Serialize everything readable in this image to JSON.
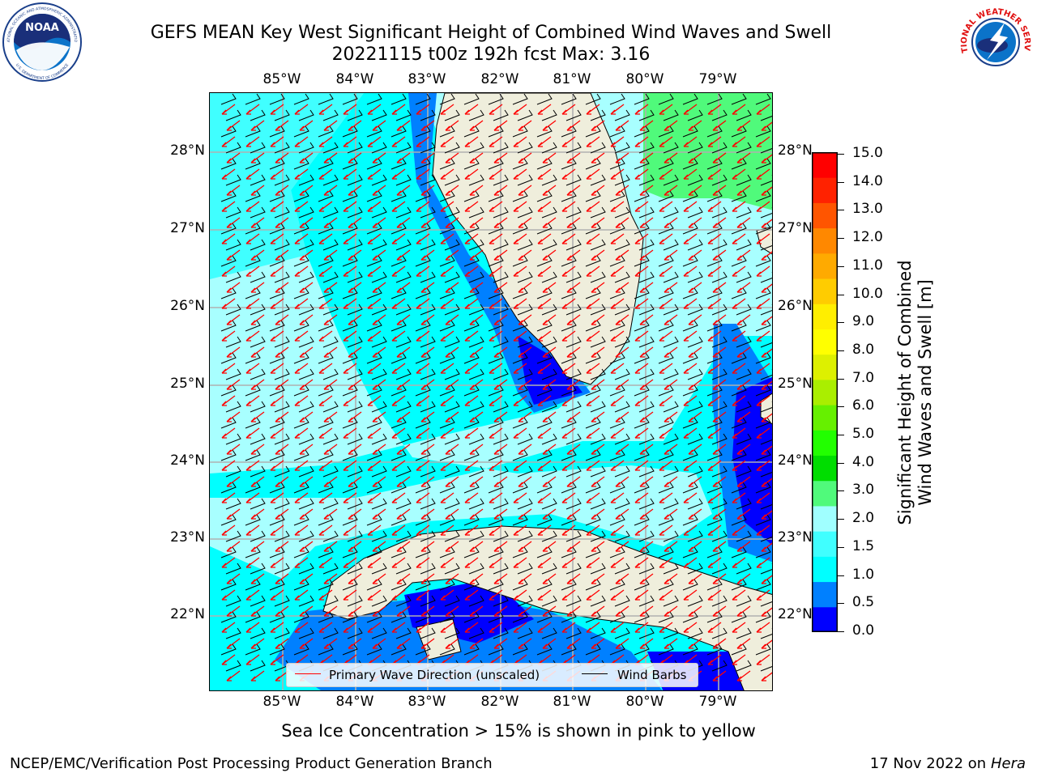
{
  "title_line1": "GEFS MEAN Key West Significant Height of Combined Wind Waves and Swell",
  "title_line2": "20221115 t00z 192h fcst   Max: 3.16",
  "lon_ticks": [
    "85°W",
    "84°W",
    "83°W",
    "82°W",
    "81°W",
    "80°W",
    "79°W"
  ],
  "lat_ticks": [
    "28°N",
    "27°N",
    "26°N",
    "25°N",
    "24°N",
    "23°N",
    "22°N"
  ],
  "colorbar": {
    "ticks": [
      "15.0",
      "14.0",
      "13.0",
      "12.0",
      "11.0",
      "10.0",
      "9.0",
      "8.0",
      "7.0",
      "6.0",
      "5.0",
      "4.0",
      "3.0",
      "2.0",
      "1.5",
      "1.0",
      "0.5",
      "0.0"
    ],
    "label_line1": "Significant Height of Combined",
    "label_line2": "Wind Waves and Swell [m]",
    "colors": [
      "#0000ff",
      "#0080ff",
      "#00ffff",
      "#40ffff",
      "#a0ffff",
      "#50fa7b",
      "#00dd00",
      "#22ff00",
      "#66f000",
      "#aaee00",
      "#ddf000",
      "#ffff00",
      "#ffee00",
      "#ffcc00",
      "#ffaa00",
      "#ff8800",
      "#ff5500",
      "#ff2200",
      "#ff0000"
    ]
  },
  "legend": {
    "wave_label": "Primary Wave Direction (unscaled)",
    "wind_label": "Wind Barbs",
    "wave_color": "#ff0000",
    "wind_color": "#000000"
  },
  "ice_note": "Sea Ice Concentration > 15% is shown in pink to yellow",
  "credit_left": "NCEP/EMC/Verification Post Processing Product Generation Branch",
  "credit_right_date": "17 Nov 2022 on",
  "credit_right_host": "Hera",
  "logos": {
    "noaa_text": "NOAA",
    "noaa_ring": "NATIONAL OCEANIC AND ATMOSPHERIC ADMINISTRATION",
    "noaa_ring_bottom": "U.S. DEPARTMENT OF COMMERCE",
    "nws_ring": "NATIONAL WEATHER SERVICE"
  },
  "colors": {
    "land": "#efeedc",
    "grid": "#b0b0b0"
  }
}
